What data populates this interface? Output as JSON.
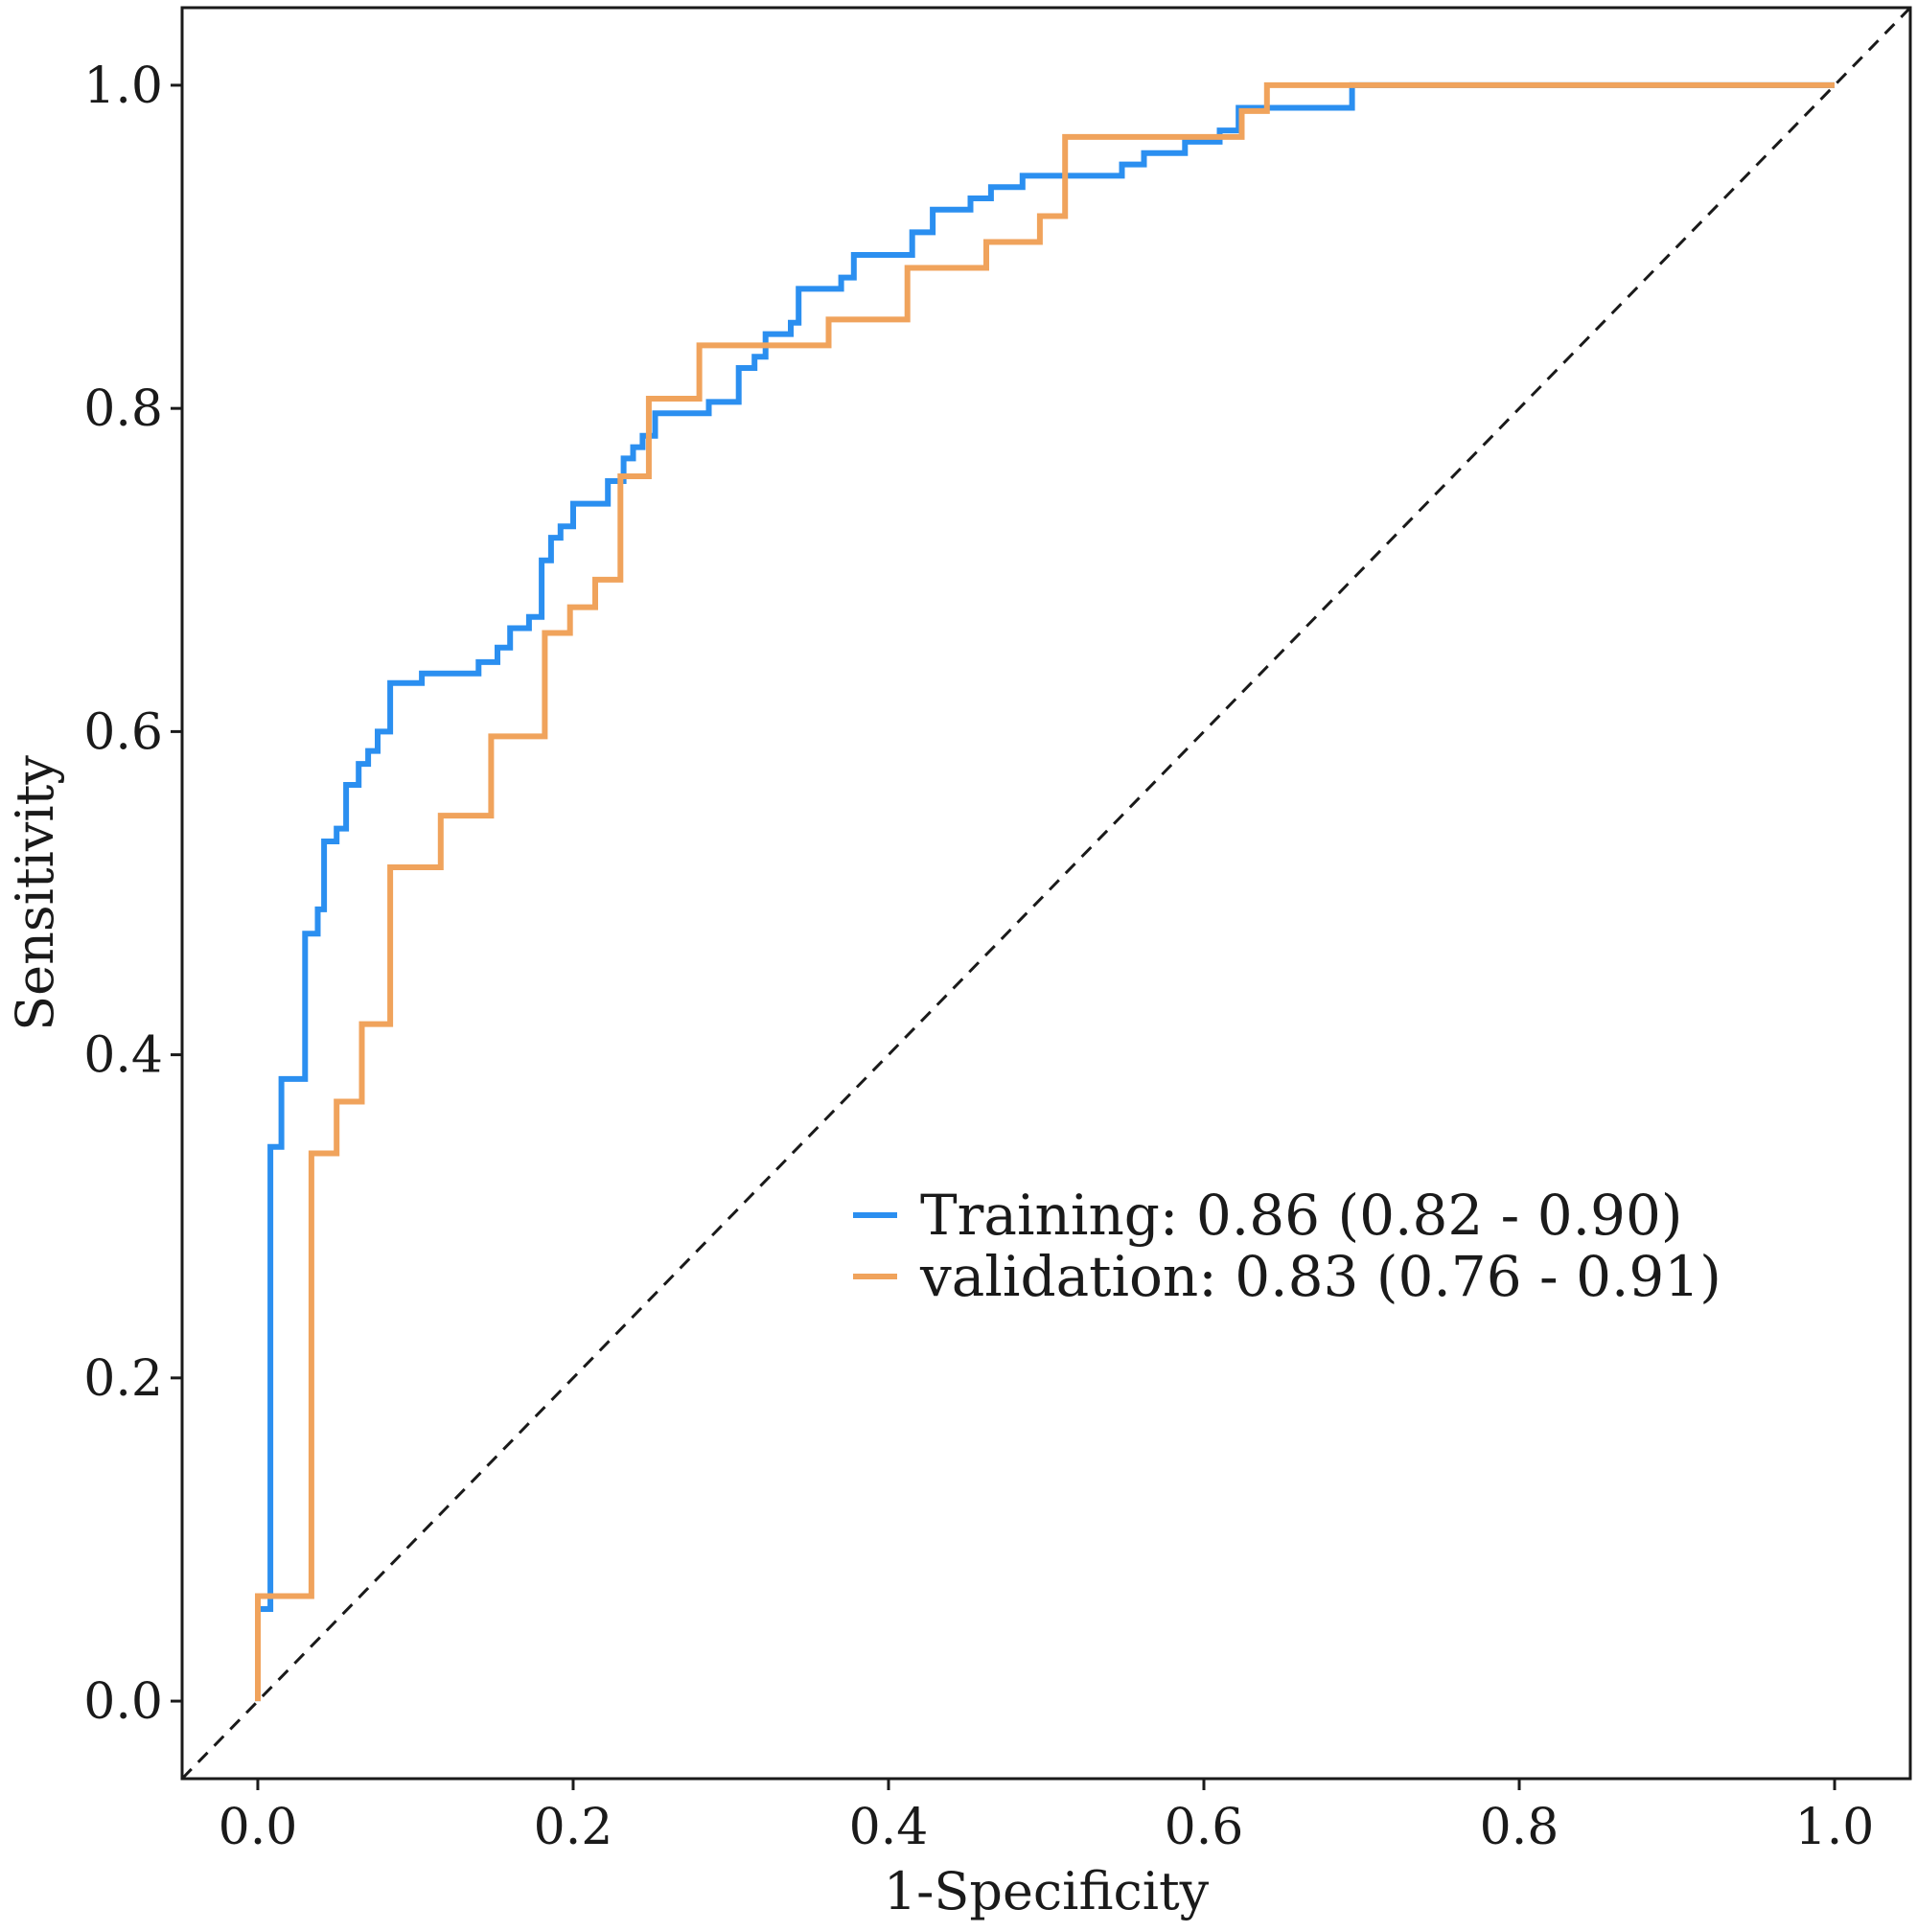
{
  "chart_data": {
    "type": "line",
    "title": "",
    "xlabel": "1-Specificity",
    "ylabel": "Sensitivity",
    "xlim": [
      -0.048,
      1.048
    ],
    "ylim": [
      -0.048,
      1.048
    ],
    "xticks": [
      0.0,
      0.2,
      0.4,
      0.6,
      0.8,
      1.0
    ],
    "yticks": [
      0.0,
      0.2,
      0.4,
      0.6,
      0.8,
      1.0
    ],
    "xtick_labels": [
      "0.0",
      "0.2",
      "0.4",
      "0.6",
      "0.8",
      "1.0"
    ],
    "ytick_labels": [
      "0.0",
      "0.2",
      "0.4",
      "0.6",
      "0.8",
      "1.0"
    ],
    "grid": false,
    "legend_position": "center-right",
    "reference_line": {
      "style": "dashed",
      "color": "#1a1a1a",
      "from": [
        0,
        0
      ],
      "to": [
        1,
        1
      ]
    },
    "series": [
      {
        "name": "Training",
        "legend_label": "Training: 0.86 (0.82 - 0.90)",
        "auc": 0.86,
        "ci": [
          0.82,
          0.9
        ],
        "color": "#2b8ff0",
        "points": [
          [
            0.0,
            0.0
          ],
          [
            0.0,
            0.057
          ],
          [
            0.008,
            0.057
          ],
          [
            0.008,
            0.343
          ],
          [
            0.015,
            0.343
          ],
          [
            0.015,
            0.385
          ],
          [
            0.03,
            0.385
          ],
          [
            0.03,
            0.475
          ],
          [
            0.038,
            0.475
          ],
          [
            0.038,
            0.49
          ],
          [
            0.042,
            0.49
          ],
          [
            0.042,
            0.532
          ],
          [
            0.05,
            0.532
          ],
          [
            0.05,
            0.54
          ],
          [
            0.056,
            0.54
          ],
          [
            0.056,
            0.567
          ],
          [
            0.064,
            0.567
          ],
          [
            0.064,
            0.58
          ],
          [
            0.07,
            0.58
          ],
          [
            0.07,
            0.588
          ],
          [
            0.076,
            0.588
          ],
          [
            0.076,
            0.6
          ],
          [
            0.084,
            0.6
          ],
          [
            0.084,
            0.63
          ],
          [
            0.104,
            0.63
          ],
          [
            0.104,
            0.636
          ],
          [
            0.14,
            0.636
          ],
          [
            0.14,
            0.643
          ],
          [
            0.152,
            0.643
          ],
          [
            0.152,
            0.652
          ],
          [
            0.16,
            0.652
          ],
          [
            0.16,
            0.664
          ],
          [
            0.172,
            0.664
          ],
          [
            0.172,
            0.671
          ],
          [
            0.18,
            0.671
          ],
          [
            0.18,
            0.706
          ],
          [
            0.186,
            0.706
          ],
          [
            0.186,
            0.72
          ],
          [
            0.192,
            0.72
          ],
          [
            0.192,
            0.727
          ],
          [
            0.2,
            0.727
          ],
          [
            0.2,
            0.741
          ],
          [
            0.222,
            0.741
          ],
          [
            0.222,
            0.755
          ],
          [
            0.232,
            0.755
          ],
          [
            0.232,
            0.769
          ],
          [
            0.238,
            0.769
          ],
          [
            0.238,
            0.776
          ],
          [
            0.244,
            0.776
          ],
          [
            0.244,
            0.783
          ],
          [
            0.252,
            0.783
          ],
          [
            0.252,
            0.797
          ],
          [
            0.286,
            0.797
          ],
          [
            0.286,
            0.804
          ],
          [
            0.305,
            0.804
          ],
          [
            0.305,
            0.825
          ],
          [
            0.315,
            0.825
          ],
          [
            0.315,
            0.832
          ],
          [
            0.322,
            0.832
          ],
          [
            0.322,
            0.846
          ],
          [
            0.338,
            0.846
          ],
          [
            0.338,
            0.853
          ],
          [
            0.343,
            0.853
          ],
          [
            0.343,
            0.874
          ],
          [
            0.37,
            0.874
          ],
          [
            0.37,
            0.881
          ],
          [
            0.378,
            0.881
          ],
          [
            0.378,
            0.895
          ],
          [
            0.415,
            0.895
          ],
          [
            0.415,
            0.909
          ],
          [
            0.428,
            0.909
          ],
          [
            0.428,
            0.923
          ],
          [
            0.452,
            0.923
          ],
          [
            0.452,
            0.93
          ],
          [
            0.465,
            0.93
          ],
          [
            0.465,
            0.937
          ],
          [
            0.485,
            0.937
          ],
          [
            0.485,
            0.944
          ],
          [
            0.548,
            0.944
          ],
          [
            0.548,
            0.951
          ],
          [
            0.562,
            0.951
          ],
          [
            0.562,
            0.958
          ],
          [
            0.588,
            0.958
          ],
          [
            0.588,
            0.965
          ],
          [
            0.61,
            0.965
          ],
          [
            0.61,
            0.972
          ],
          [
            0.622,
            0.972
          ],
          [
            0.622,
            0.986
          ],
          [
            0.694,
            0.986
          ],
          [
            0.694,
            1.0
          ],
          [
            1.0,
            1.0
          ]
        ]
      },
      {
        "name": "validation",
        "legend_label": "validation: 0.83 (0.76 - 0.91)",
        "auc": 0.83,
        "ci": [
          0.76,
          0.91
        ],
        "color": "#f0a35c",
        "points": [
          [
            0.0,
            0.0
          ],
          [
            0.0,
            0.065
          ],
          [
            0.034,
            0.065
          ],
          [
            0.034,
            0.339
          ],
          [
            0.05,
            0.339
          ],
          [
            0.05,
            0.371
          ],
          [
            0.066,
            0.371
          ],
          [
            0.066,
            0.419
          ],
          [
            0.084,
            0.419
          ],
          [
            0.084,
            0.516
          ],
          [
            0.116,
            0.516
          ],
          [
            0.116,
            0.548
          ],
          [
            0.148,
            0.548
          ],
          [
            0.148,
            0.597
          ],
          [
            0.182,
            0.597
          ],
          [
            0.182,
            0.661
          ],
          [
            0.198,
            0.661
          ],
          [
            0.198,
            0.677
          ],
          [
            0.214,
            0.677
          ],
          [
            0.214,
            0.694
          ],
          [
            0.23,
            0.694
          ],
          [
            0.23,
            0.758
          ],
          [
            0.248,
            0.758
          ],
          [
            0.248,
            0.806
          ],
          [
            0.28,
            0.806
          ],
          [
            0.28,
            0.839
          ],
          [
            0.362,
            0.839
          ],
          [
            0.362,
            0.855
          ],
          [
            0.412,
            0.855
          ],
          [
            0.412,
            0.887
          ],
          [
            0.462,
            0.887
          ],
          [
            0.462,
            0.903
          ],
          [
            0.496,
            0.903
          ],
          [
            0.496,
            0.919
          ],
          [
            0.512,
            0.919
          ],
          [
            0.512,
            0.968
          ],
          [
            0.624,
            0.968
          ],
          [
            0.624,
            0.984
          ],
          [
            0.64,
            0.984
          ],
          [
            0.64,
            1.0
          ],
          [
            1.0,
            1.0
          ]
        ]
      }
    ]
  }
}
